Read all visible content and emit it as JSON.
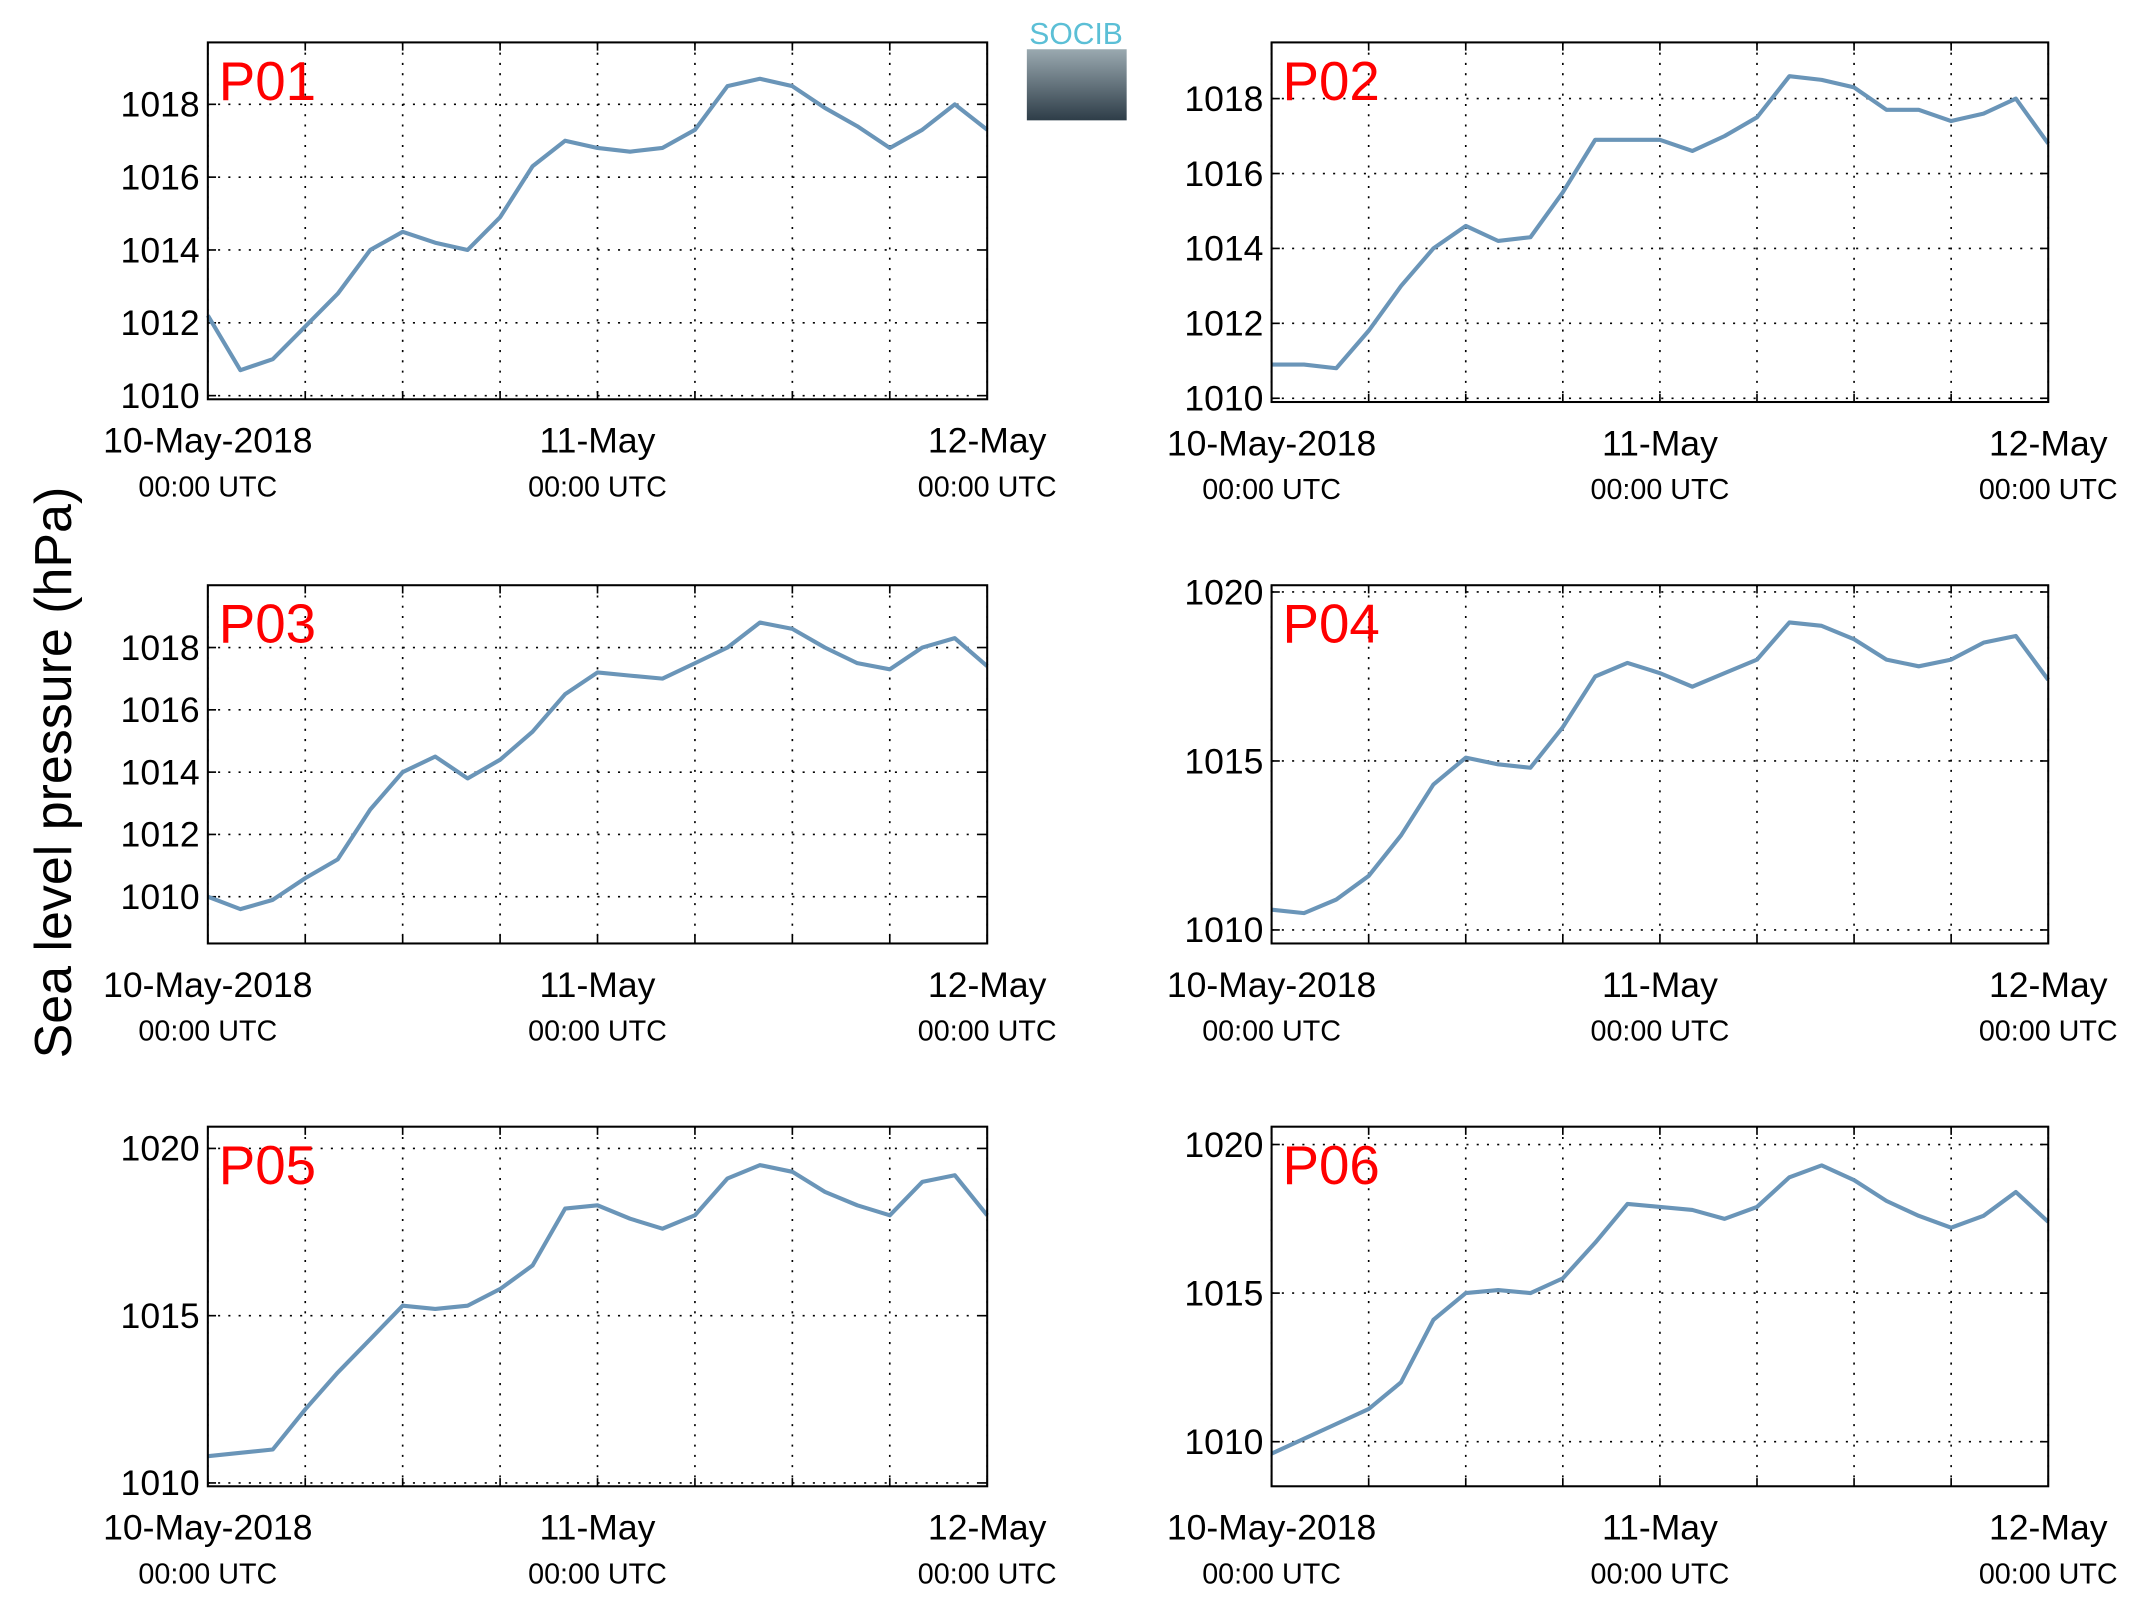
{
  "ylabel": "Sea level pressure (hPa)",
  "logo": "SOCIB",
  "chart_data": [
    {
      "type": "line",
      "title": "P01",
      "color": "#6a95b8",
      "grid": true,
      "x": [
        0,
        2,
        4,
        6,
        8,
        10,
        12,
        14,
        16,
        18,
        20,
        22,
        24,
        26,
        28,
        30,
        32,
        34,
        36,
        38,
        40,
        42,
        44,
        46,
        48
      ],
      "values": [
        1012.2,
        1010.7,
        1011.0,
        1011.9,
        1012.8,
        1014.0,
        1014.5,
        1014.2,
        1014.0,
        1014.9,
        1016.3,
        1017.0,
        1016.8,
        1016.7,
        1016.8,
        1017.3,
        1018.5,
        1018.7,
        1018.5,
        1017.9,
        1017.4,
        1016.8,
        1017.3,
        1018.0,
        1017.3
      ],
      "xlim": [
        0,
        48
      ],
      "ylim": [
        1009.9,
        1019.7
      ],
      "yticks": [
        1010,
        1012,
        1014,
        1016,
        1018
      ],
      "xticks": [
        {
          "value": 0,
          "label": "10-May-2018",
          "sublabel": "00:00 UTC"
        },
        {
          "value": 24,
          "label": "11-May",
          "sublabel": "00:00 UTC"
        },
        {
          "value": 48,
          "label": "12-May",
          "sublabel": "00:00 UTC"
        }
      ],
      "xminorticks": [
        6,
        12,
        18,
        30,
        36,
        42
      ]
    },
    {
      "type": "line",
      "title": "P02",
      "color": "#6a95b8",
      "grid": true,
      "x": [
        0,
        2,
        4,
        6,
        8,
        10,
        12,
        14,
        16,
        18,
        20,
        22,
        24,
        26,
        28,
        30,
        32,
        34,
        36,
        38,
        40,
        42,
        44,
        46,
        48
      ],
      "values": [
        1010.9,
        1010.9,
        1010.8,
        1011.8,
        1013.0,
        1014.0,
        1014.6,
        1014.2,
        1014.3,
        1015.5,
        1016.9,
        1016.9,
        1016.9,
        1016.6,
        1017.0,
        1017.5,
        1018.6,
        1018.5,
        1018.3,
        1017.7,
        1017.7,
        1017.4,
        1017.6,
        1018.0,
        1016.8
      ],
      "xlim": [
        0,
        48
      ],
      "ylim": [
        1009.9,
        1019.5
      ],
      "yticks": [
        1010,
        1012,
        1014,
        1016,
        1018
      ],
      "xticks": [
        {
          "value": 0,
          "label": "10-May-2018",
          "sublabel": "00:00 UTC"
        },
        {
          "value": 24,
          "label": "11-May",
          "sublabel": "00:00 UTC"
        },
        {
          "value": 48,
          "label": "12-May",
          "sublabel": "00:00 UTC"
        }
      ],
      "xminorticks": [
        6,
        12,
        18,
        30,
        36,
        42
      ]
    },
    {
      "type": "line",
      "title": "P03",
      "color": "#6a95b8",
      "grid": true,
      "x": [
        0,
        2,
        4,
        6,
        8,
        10,
        12,
        14,
        16,
        18,
        20,
        22,
        24,
        26,
        28,
        30,
        32,
        34,
        36,
        38,
        40,
        42,
        44,
        46,
        48
      ],
      "values": [
        1010.0,
        1009.6,
        1009.9,
        1010.6,
        1011.2,
        1012.8,
        1014.0,
        1014.5,
        1013.8,
        1014.4,
        1015.3,
        1016.5,
        1017.2,
        1017.1,
        1017.0,
        1017.5,
        1018.0,
        1018.8,
        1018.6,
        1018.0,
        1017.5,
        1017.3,
        1018.0,
        1018.3,
        1017.4
      ],
      "xlim": [
        0,
        48
      ],
      "ylim": [
        1008.5,
        1020.0
      ],
      "yticks": [
        1010,
        1012,
        1014,
        1016,
        1018
      ],
      "xticks": [
        {
          "value": 0,
          "label": "10-May-2018",
          "sublabel": "00:00 UTC"
        },
        {
          "value": 24,
          "label": "11-May",
          "sublabel": "00:00 UTC"
        },
        {
          "value": 48,
          "label": "12-May",
          "sublabel": "00:00 UTC"
        }
      ],
      "xminorticks": [
        6,
        12,
        18,
        30,
        36,
        42
      ]
    },
    {
      "type": "line",
      "title": "P04",
      "color": "#6a95b8",
      "grid": true,
      "x": [
        0,
        2,
        4,
        6,
        8,
        10,
        12,
        14,
        16,
        18,
        20,
        22,
        24,
        26,
        28,
        30,
        32,
        34,
        36,
        38,
        40,
        42,
        44,
        46,
        48
      ],
      "values": [
        1010.6,
        1010.5,
        1010.9,
        1011.6,
        1012.8,
        1014.3,
        1015.1,
        1014.9,
        1014.8,
        1016.0,
        1017.5,
        1017.9,
        1017.6,
        1017.2,
        1017.6,
        1018.0,
        1019.1,
        1019.0,
        1018.6,
        1018.0,
        1017.8,
        1018.0,
        1018.5,
        1018.7,
        1017.4
      ],
      "xlim": [
        0,
        48
      ],
      "ylim": [
        1009.6,
        1020.2
      ],
      "yticks": [
        1010,
        1015,
        1020
      ],
      "xticks": [
        {
          "value": 0,
          "label": "10-May-2018",
          "sublabel": "00:00 UTC"
        },
        {
          "value": 24,
          "label": "11-May",
          "sublabel": "00:00 UTC"
        },
        {
          "value": 48,
          "label": "12-May",
          "sublabel": "00:00 UTC"
        }
      ],
      "xminorticks": [
        6,
        12,
        18,
        30,
        36,
        42
      ]
    },
    {
      "type": "line",
      "title": "P05",
      "color": "#6a95b8",
      "grid": true,
      "x": [
        0,
        2,
        4,
        6,
        8,
        10,
        12,
        14,
        16,
        18,
        20,
        22,
        24,
        26,
        28,
        30,
        32,
        34,
        36,
        38,
        40,
        42,
        44,
        46,
        48
      ],
      "values": [
        1010.8,
        1010.9,
        1011.0,
        1012.2,
        1013.3,
        1014.3,
        1015.3,
        1015.2,
        1015.3,
        1015.8,
        1016.5,
        1018.2,
        1018.3,
        1017.9,
        1017.6,
        1018.0,
        1019.1,
        1019.5,
        1019.3,
        1018.7,
        1018.3,
        1018.0,
        1019.0,
        1019.2,
        1018.0
      ],
      "xlim": [
        0,
        48
      ],
      "ylim": [
        1009.9,
        1020.65
      ],
      "yticks": [
        1010,
        1015,
        1020
      ],
      "xticks": [
        {
          "value": 0,
          "label": "10-May-2018",
          "sublabel": "00:00 UTC"
        },
        {
          "value": 24,
          "label": "11-May",
          "sublabel": "00:00 UTC"
        },
        {
          "value": 48,
          "label": "12-May",
          "sublabel": "00:00 UTC"
        }
      ],
      "xminorticks": [
        6,
        12,
        18,
        30,
        36,
        42
      ]
    },
    {
      "type": "line",
      "title": "P06",
      "color": "#6a95b8",
      "grid": true,
      "x": [
        0,
        2,
        4,
        6,
        8,
        10,
        12,
        14,
        16,
        18,
        20,
        22,
        24,
        26,
        28,
        30,
        32,
        34,
        36,
        38,
        40,
        42,
        44,
        46,
        48
      ],
      "values": [
        1009.6,
        1010.1,
        1010.6,
        1011.1,
        1012.0,
        1014.1,
        1015.0,
        1015.1,
        1015.0,
        1015.5,
        1016.7,
        1018.0,
        1017.9,
        1017.8,
        1017.5,
        1017.9,
        1018.9,
        1019.3,
        1018.8,
        1018.1,
        1017.6,
        1017.2,
        1017.6,
        1018.4,
        1017.4
      ],
      "xlim": [
        0,
        48
      ],
      "ylim": [
        1008.5,
        1020.6
      ],
      "yticks": [
        1010,
        1015,
        1020
      ],
      "xticks": [
        {
          "value": 0,
          "label": "10-May-2018",
          "sublabel": "00:00 UTC"
        },
        {
          "value": 24,
          "label": "11-May",
          "sublabel": "00:00 UTC"
        },
        {
          "value": 48,
          "label": "12-May",
          "sublabel": "00:00 UTC"
        }
      ],
      "xminorticks": [
        6,
        12,
        18,
        30,
        36,
        42
      ]
    }
  ]
}
